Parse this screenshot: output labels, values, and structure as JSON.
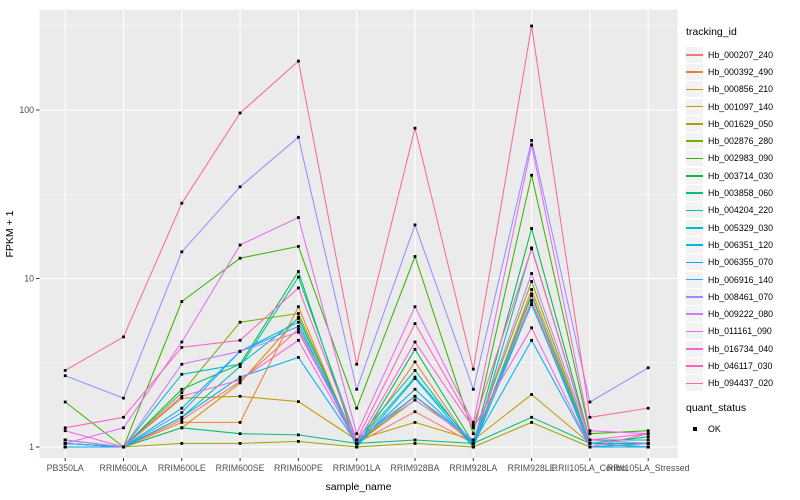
{
  "figure": {
    "panel_background": "#EBEBEB",
    "grid_color": "#FFFFFF",
    "axis_text_color": "#4D4D4D",
    "axis_title_color": "#000000",
    "point_color": "#000000"
  },
  "legend": {
    "tracking_title": "tracking_id",
    "status_title": "quant_status",
    "status_items": [
      {
        "label": "OK",
        "marker": "black-square"
      }
    ]
  },
  "chart_data": {
    "type": "line",
    "title": "",
    "xlabel": "sample_name",
    "ylabel": "FPKM + 1",
    "y_scale": "log10",
    "y_ticks": [
      1,
      10,
      100
    ],
    "ylim_log_expts": [
      -0.065,
      2.59
    ],
    "grid": "major-and-minor-horizontal, major-vertical",
    "legend_position": "right",
    "categories": [
      "PB350LA",
      "RRIM600LA",
      "RRIM600LE",
      "RRIM600SE",
      "RRIM600PE",
      "RRIM901LA",
      "RRIM928BA",
      "RRIM928LA",
      "RRIM928LE",
      "RRII105LA_Control",
      "RRII105LA_Stressed"
    ],
    "series": [
      {
        "name": "Hb_000207_240",
        "color": "#F8766D",
        "values": [
          1.05,
          1.0,
          1.45,
          2.45,
          5.0,
          1.05,
          1.62,
          1.05,
          7.4,
          1.05,
          1.05
        ]
      },
      {
        "name": "Hb_000392_490",
        "color": "#EA8331",
        "values": [
          1.05,
          1.0,
          1.4,
          1.4,
          6.8,
          1.0,
          3.2,
          1.0,
          8.6,
          1.05,
          1.0
        ]
      },
      {
        "name": "Hb_000856_210",
        "color": "#D89000",
        "values": [
          1.1,
          1.0,
          1.3,
          2.4,
          5.9,
          1.05,
          2.0,
          1.05,
          8.1,
          1.0,
          1.05
        ]
      },
      {
        "name": "Hb_001097_140",
        "color": "#C09B00",
        "values": [
          1.0,
          1.0,
          1.95,
          2.0,
          1.86,
          1.1,
          1.4,
          1.1,
          2.05,
          1.05,
          1.0
        ]
      },
      {
        "name": "Hb_001629_050",
        "color": "#A3A500",
        "values": [
          1.0,
          1.0,
          1.05,
          1.05,
          1.08,
          1.0,
          1.05,
          1.0,
          1.4,
          1.0,
          1.0
        ]
      },
      {
        "name": "Hb_002876_280",
        "color": "#7CAE00",
        "values": [
          1.0,
          1.0,
          2.1,
          5.5,
          6.2,
          1.05,
          1.9,
          1.1,
          9.6,
          1.05,
          1.05
        ]
      },
      {
        "name": "Hb_002983_090",
        "color": "#39B600",
        "values": [
          1.85,
          1.0,
          7.3,
          13.2,
          15.5,
          1.7,
          13.5,
          1.2,
          41.0,
          1.2,
          1.25
        ]
      },
      {
        "name": "Hb_003714_030",
        "color": "#00BB4E",
        "values": [
          1.0,
          1.0,
          2.2,
          3.1,
          11.0,
          1.0,
          3.8,
          1.05,
          19.8,
          1.1,
          1.1
        ]
      },
      {
        "name": "Hb_003858_060",
        "color": "#00BF7D",
        "values": [
          1.1,
          1.0,
          1.3,
          1.2,
          1.18,
          1.05,
          1.1,
          1.05,
          1.5,
          1.05,
          1.15
        ]
      },
      {
        "name": "Hb_004204_220",
        "color": "#00C1A3",
        "values": [
          1.05,
          1.0,
          1.5,
          3.0,
          10.2,
          1.1,
          2.85,
          1.0,
          15.2,
          1.1,
          1.1
        ]
      },
      {
        "name": "Hb_005329_030",
        "color": "#00BFC4",
        "values": [
          1.0,
          1.0,
          2.7,
          3.1,
          5.8,
          1.05,
          2.6,
          1.05,
          7.9,
          1.05,
          1.05
        ]
      },
      {
        "name": "Hb_006351_120",
        "color": "#00BAE0",
        "values": [
          1.05,
          1.0,
          1.7,
          3.7,
          5.5,
          1.0,
          2.55,
          1.0,
          7.1,
          1.0,
          1.0
        ]
      },
      {
        "name": "Hb_006355_070",
        "color": "#00B0F6",
        "values": [
          1.0,
          1.0,
          1.5,
          2.6,
          3.4,
          1.05,
          2.2,
          1.05,
          4.3,
          1.0,
          1.05
        ]
      },
      {
        "name": "Hb_006916_140",
        "color": "#35A2FF",
        "values": [
          1.05,
          1.0,
          1.6,
          3.7,
          5.2,
          1.1,
          2.0,
          1.1,
          7.0,
          1.05,
          1.0
        ]
      },
      {
        "name": "Hb_008461_070",
        "color": "#9590FF",
        "values": [
          2.65,
          1.95,
          14.4,
          35.0,
          69.0,
          2.2,
          20.8,
          2.2,
          66.0,
          1.85,
          2.95
        ]
      },
      {
        "name": "Hb_009222_080",
        "color": "#C77CFF",
        "values": [
          1.1,
          1.0,
          3.1,
          3.7,
          4.8,
          1.1,
          1.9,
          1.1,
          10.7,
          1.1,
          1.05
        ]
      },
      {
        "name": "Hb_011161_090",
        "color": "#E76BF3",
        "values": [
          1.05,
          1.3,
          4.2,
          15.8,
          23.0,
          1.2,
          6.8,
          1.4,
          62.0,
          1.25,
          1.2
        ]
      },
      {
        "name": "Hb_016734_040",
        "color": "#FA62DB",
        "values": [
          1.25,
          1.0,
          2.0,
          2.5,
          4.3,
          1.05,
          4.2,
          1.3,
          5.1,
          1.0,
          1.2
        ]
      },
      {
        "name": "Hb_046117_030",
        "color": "#FF62BC",
        "values": [
          1.3,
          1.5,
          3.9,
          4.3,
          8.8,
          1.1,
          5.4,
          1.35,
          15.0,
          1.1,
          1.2
        ]
      },
      {
        "name": "Hb_094437_020",
        "color": "#FF6A98",
        "values": [
          2.85,
          4.5,
          28.0,
          96.0,
          195.0,
          3.1,
          78.0,
          2.9,
          315.0,
          1.5,
          1.7
        ]
      }
    ]
  }
}
